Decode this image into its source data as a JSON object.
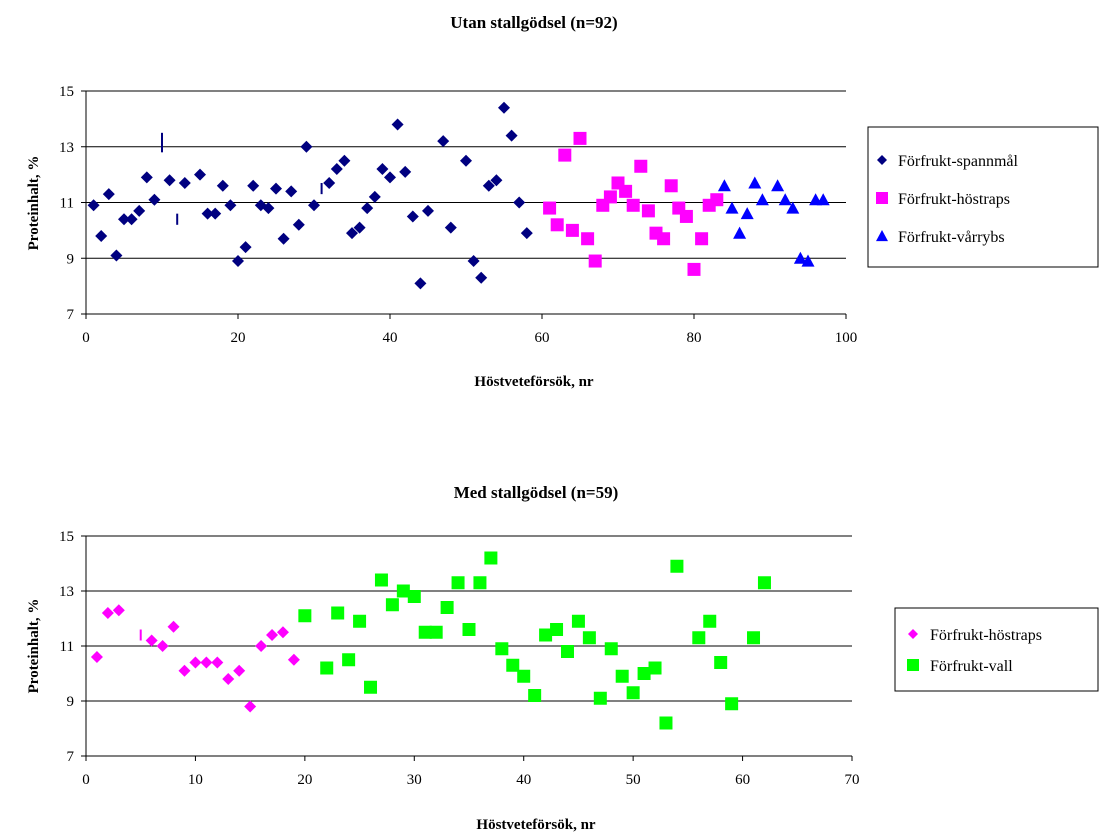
{
  "chart_data": [
    {
      "type": "scatter",
      "title": "Utan stallgödsel (n=92)",
      "xlabel": "Höstveteförsök, nr",
      "ylabel": "Proteinhalt, %",
      "xlim": [
        0,
        100
      ],
      "ylim": [
        7,
        15
      ],
      "xticks": [
        "0",
        "20",
        "40",
        "60",
        "80",
        "100"
      ],
      "yticks": [
        "7",
        "9",
        "11",
        "13",
        "15"
      ],
      "grid": "horizontal",
      "legend_position": "right",
      "series": [
        {
          "name": "Förfrukt-spannmål",
          "marker": "diamond",
          "color": "#000080",
          "points": [
            [
              1,
              10.9
            ],
            [
              2,
              9.8
            ],
            [
              3,
              11.3
            ],
            [
              4,
              9.1
            ],
            [
              5,
              10.4
            ],
            [
              6,
              10.4
            ],
            [
              7,
              10.7
            ],
            [
              8,
              11.9
            ],
            [
              9,
              11.1
            ],
            [
              11,
              11.8
            ],
            [
              13,
              11.7
            ],
            [
              15,
              12.0
            ],
            [
              16,
              10.6
            ],
            [
              17,
              10.6
            ],
            [
              18,
              11.6
            ],
            [
              19,
              10.9
            ],
            [
              20,
              8.9
            ],
            [
              21,
              9.4
            ],
            [
              22,
              11.6
            ],
            [
              23,
              10.9
            ],
            [
              24,
              10.8
            ],
            [
              25,
              11.5
            ],
            [
              26,
              9.7
            ],
            [
              27,
              11.4
            ],
            [
              28,
              10.2
            ],
            [
              29,
              13.0
            ],
            [
              30,
              10.9
            ],
            [
              32,
              11.7
            ],
            [
              33,
              12.2
            ],
            [
              34,
              12.5
            ],
            [
              35,
              9.9
            ],
            [
              36,
              10.1
            ],
            [
              37,
              10.8
            ],
            [
              38,
              11.2
            ],
            [
              39,
              12.2
            ],
            [
              40,
              11.9
            ],
            [
              41,
              13.8
            ],
            [
              42,
              12.1
            ],
            [
              43,
              10.5
            ],
            [
              44,
              8.1
            ],
            [
              45,
              10.7
            ],
            [
              47,
              13.2
            ],
            [
              48,
              10.1
            ],
            [
              50,
              12.5
            ],
            [
              51,
              8.9
            ],
            [
              52,
              8.3
            ],
            [
              53,
              11.6
            ],
            [
              54,
              11.8
            ],
            [
              55,
              14.4
            ],
            [
              56,
              13.4
            ],
            [
              57,
              11.0
            ],
            [
              58,
              9.9
            ]
          ]
        },
        {
          "name": "Förfrukt-höstraps",
          "marker": "square",
          "color": "#ff00ff",
          "points": [
            [
              61,
              10.8
            ],
            [
              62,
              10.2
            ],
            [
              63,
              12.7
            ],
            [
              64,
              10.0
            ],
            [
              65,
              13.3
            ],
            [
              66,
              9.7
            ],
            [
              67,
              8.9
            ],
            [
              68,
              10.9
            ],
            [
              69,
              11.2
            ],
            [
              70,
              11.7
            ],
            [
              71,
              11.4
            ],
            [
              72,
              10.9
            ],
            [
              73,
              12.3
            ],
            [
              74,
              10.7
            ],
            [
              75,
              9.9
            ],
            [
              76,
              9.7
            ],
            [
              77,
              11.6
            ],
            [
              78,
              10.8
            ],
            [
              79,
              10.5
            ],
            [
              80,
              8.6
            ],
            [
              81,
              9.7
            ],
            [
              82,
              10.9
            ],
            [
              83,
              11.1
            ]
          ]
        },
        {
          "name": "Förfrukt-vårrybs",
          "marker": "triangle",
          "color": "#0000ff",
          "points": [
            [
              84,
              11.6
            ],
            [
              85,
              10.8
            ],
            [
              86,
              9.9
            ],
            [
              87,
              10.6
            ],
            [
              88,
              11.7
            ],
            [
              89,
              11.1
            ],
            [
              91,
              11.6
            ],
            [
              92,
              11.1
            ],
            [
              93,
              10.8
            ],
            [
              94,
              9.0
            ],
            [
              95,
              8.9
            ],
            [
              96,
              11.1
            ],
            [
              97,
              11.1
            ]
          ]
        }
      ],
      "error_ticks": [
        {
          "x": 10,
          "low": 12.8,
          "high": 13.5,
          "color": "#000080"
        },
        {
          "x": 12,
          "low": 10.2,
          "high": 10.6,
          "color": "#000080"
        },
        {
          "x": 31,
          "low": 11.3,
          "high": 11.7,
          "color": "#000080"
        }
      ]
    },
    {
      "type": "scatter",
      "title": "Med stallgödsel (n=59)",
      "xlabel": "Höstveteförsök, nr",
      "ylabel": "Proteinhalt, %",
      "xlim": [
        0,
        70
      ],
      "ylim": [
        7,
        15
      ],
      "xticks": [
        "0",
        "10",
        "20",
        "30",
        "40",
        "50",
        "60",
        "70"
      ],
      "yticks": [
        "7",
        "9",
        "11",
        "13",
        "15"
      ],
      "grid": "horizontal",
      "legend_position": "right",
      "series": [
        {
          "name": "Förfrukt-höstraps",
          "marker": "diamond",
          "color": "#ff00ff",
          "points": [
            [
              1,
              10.6
            ],
            [
              2,
              12.2
            ],
            [
              3,
              12.3
            ],
            [
              6,
              11.2
            ],
            [
              7,
              11.0
            ],
            [
              8,
              11.7
            ],
            [
              9,
              10.1
            ],
            [
              10,
              10.4
            ],
            [
              11,
              10.4
            ],
            [
              12,
              10.4
            ],
            [
              13,
              9.8
            ],
            [
              14,
              10.1
            ],
            [
              15,
              8.8
            ],
            [
              16,
              11.0
            ],
            [
              17,
              11.4
            ],
            [
              18,
              11.5
            ],
            [
              19,
              10.5
            ]
          ]
        },
        {
          "name": "Förfrukt-vall",
          "marker": "square",
          "color": "#00ff00",
          "points": [
            [
              20,
              12.1
            ],
            [
              22,
              10.2
            ],
            [
              23,
              12.2
            ],
            [
              24,
              10.5
            ],
            [
              25,
              11.9
            ],
            [
              26,
              9.5
            ],
            [
              27,
              13.4
            ],
            [
              28,
              12.5
            ],
            [
              29,
              13.0
            ],
            [
              30,
              12.8
            ],
            [
              31,
              11.5
            ],
            [
              32,
              11.5
            ],
            [
              33,
              12.4
            ],
            [
              34,
              13.3
            ],
            [
              35,
              11.6
            ],
            [
              36,
              13.3
            ],
            [
              37,
              14.2
            ],
            [
              38,
              10.9
            ],
            [
              39,
              10.3
            ],
            [
              40,
              9.9
            ],
            [
              41,
              9.2
            ],
            [
              42,
              11.4
            ],
            [
              43,
              11.6
            ],
            [
              44,
              10.8
            ],
            [
              45,
              11.9
            ],
            [
              46,
              11.3
            ],
            [
              47,
              9.1
            ],
            [
              48,
              10.9
            ],
            [
              49,
              9.9
            ],
            [
              50,
              9.3
            ],
            [
              51,
              10.0
            ],
            [
              52,
              10.2
            ],
            [
              53,
              8.2
            ],
            [
              54,
              13.9
            ],
            [
              56,
              11.3
            ],
            [
              57,
              11.9
            ],
            [
              58,
              10.4
            ],
            [
              59,
              8.9
            ],
            [
              61,
              11.3
            ],
            [
              62,
              13.3
            ]
          ]
        }
      ],
      "error_ticks": [
        {
          "x": 5,
          "low": 11.2,
          "high": 11.6,
          "color": "#ff00ff"
        }
      ]
    }
  ]
}
